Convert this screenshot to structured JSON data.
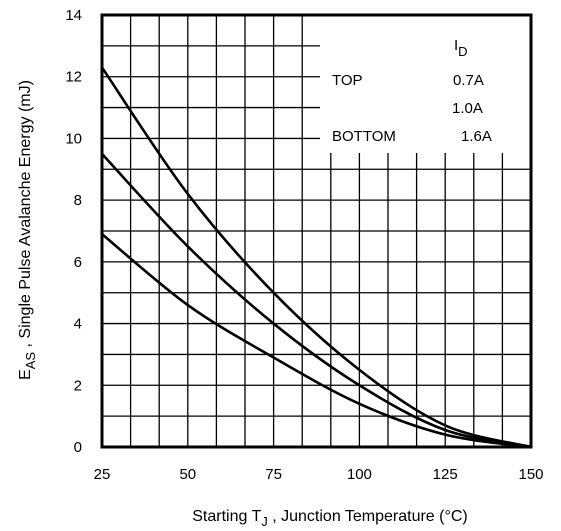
{
  "chart_data": {
    "type": "line",
    "xlabel": {
      "prefix": "Starting T",
      "sub": "J",
      "suffix": " , Junction Temperature (°C)"
    },
    "ylabel": {
      "prefix": "E",
      "sub": "AS",
      "suffix": " , Single Pulse Avalanche Energy (mJ)"
    },
    "xlim": [
      25,
      150
    ],
    "ylim": [
      0,
      14
    ],
    "xticks": [
      "25",
      "50",
      "75",
      "100",
      "125",
      "150"
    ],
    "yticks": [
      "0",
      "2",
      "4",
      "6",
      "8",
      "10",
      "12",
      "14"
    ],
    "grid": true,
    "legend": {
      "header_main": "I",
      "header_sub": "D",
      "rows": [
        {
          "label": "TOP",
          "value": "0.7A"
        },
        {
          "label": "",
          "value": "1.0A"
        },
        {
          "label": "BOTTOM",
          "value": "1.6A"
        }
      ]
    },
    "series": [
      {
        "name": "0.7A",
        "x": [
          25,
          50,
          75,
          100,
          125,
          150
        ],
        "values": [
          12.3,
          8.2,
          5.0,
          2.5,
          0.7,
          0.0
        ]
      },
      {
        "name": "1.0A",
        "x": [
          25,
          50,
          75,
          100,
          125,
          150
        ],
        "values": [
          9.5,
          6.5,
          4.0,
          2.0,
          0.55,
          0.0
        ]
      },
      {
        "name": "1.6A",
        "x": [
          25,
          50,
          75,
          100,
          125,
          150
        ],
        "values": [
          6.9,
          4.6,
          2.9,
          1.4,
          0.4,
          0.0
        ]
      }
    ]
  }
}
